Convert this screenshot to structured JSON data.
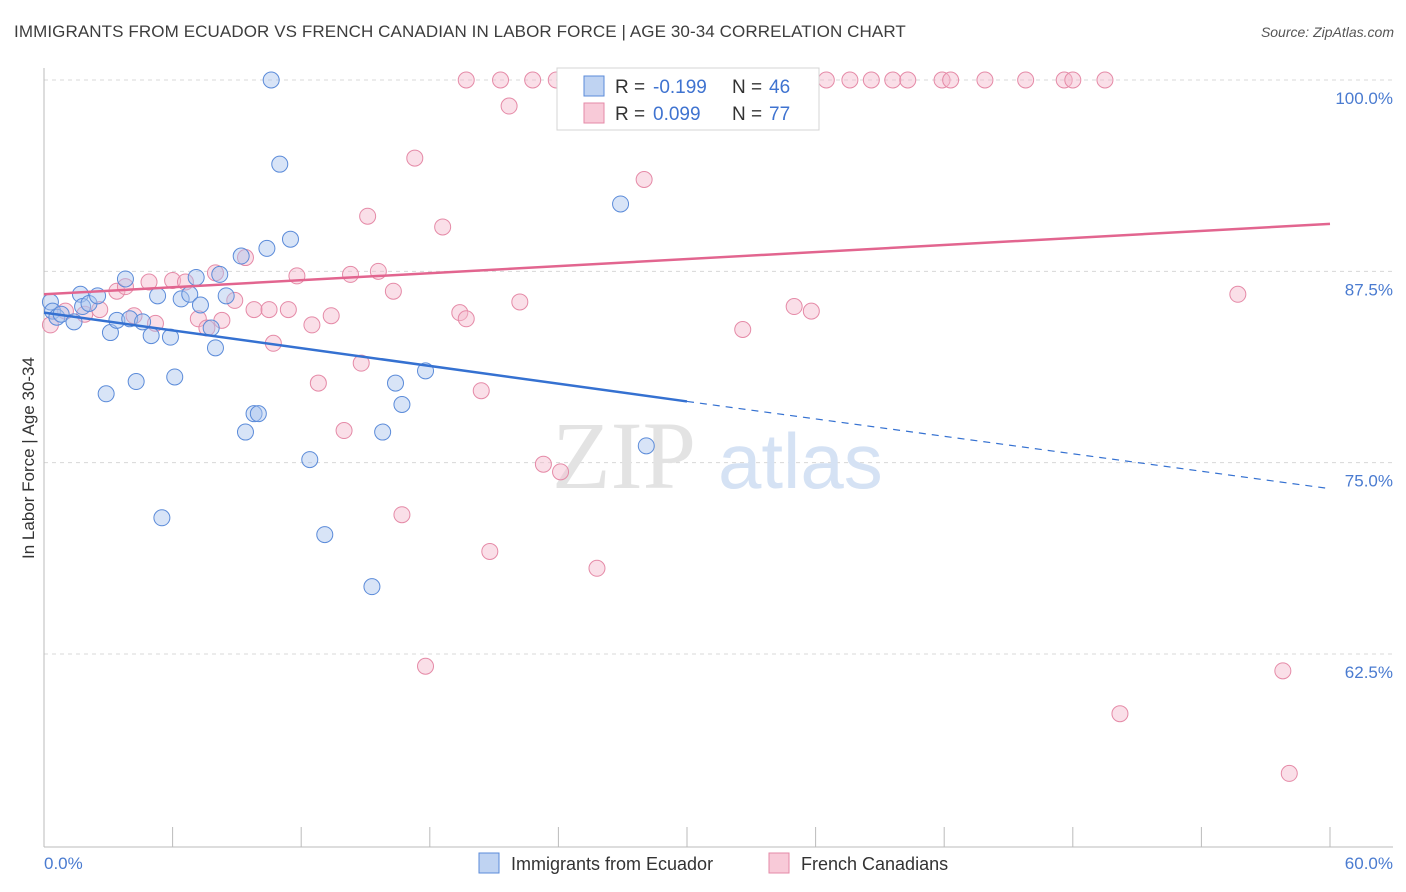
{
  "title": "IMMIGRANTS FROM ECUADOR VS FRENCH CANADIAN IN LABOR FORCE | AGE 30-34 CORRELATION CHART",
  "source": "Source: ZipAtlas.com",
  "watermark": {
    "zip": "ZIP",
    "atlas": "atlas"
  },
  "colors": {
    "blue_fill": "#a9c4ee",
    "blue_stroke": "#5b8bd9",
    "blue_line": "#3571d1",
    "pink_fill": "#f5b8cb",
    "pink_stroke": "#e58aa7",
    "pink_line": "#e2658f",
    "grid": "#d8d8d8",
    "tick_text": "#4a7bd0"
  },
  "legend": {
    "r_label": "R =",
    "n_label": "N =",
    "series": [
      {
        "r": "-0.199",
        "n": "46"
      },
      {
        "r": "0.099",
        "n": "77"
      }
    ]
  },
  "bottom_legend": [
    "Immigrants from Ecuador",
    "French Canadians"
  ],
  "chart_data": {
    "type": "scatter",
    "title": "IMMIGRANTS FROM ECUADOR VS FRENCH CANADIAN IN LABOR FORCE | AGE 30-34 CORRELATION CHART",
    "xlabel": "",
    "ylabel": "In Labor Force | Age 30-34",
    "xlim": [
      0,
      60
    ],
    "ylim": [
      50,
      101.5
    ],
    "x_tick_labels": [
      "0.0%",
      "60.0%"
    ],
    "y_tick_values": [
      62.5,
      75.0,
      87.5,
      100.0
    ],
    "y_tick_labels": [
      "62.5%",
      "75.0%",
      "87.5%",
      "100.0%"
    ],
    "grid": "horizontal dashed",
    "series": [
      {
        "name": "Immigrants from Ecuador",
        "trend": {
          "x0": 0,
          "y0": 84.8,
          "x1": 30,
          "y1": 79.0,
          "dashed_to_x": 60,
          "dashed_to_y": 73.3
        },
        "points": [
          [
            0.3,
            85.5
          ],
          [
            0.4,
            84.9
          ],
          [
            0.6,
            84.5
          ],
          [
            0.8,
            84.7
          ],
          [
            1.4,
            84.2
          ],
          [
            1.7,
            86.0
          ],
          [
            1.8,
            85.2
          ],
          [
            2.1,
            85.4
          ],
          [
            2.5,
            85.9
          ],
          [
            2.9,
            79.5
          ],
          [
            3.1,
            83.5
          ],
          [
            3.4,
            84.3
          ],
          [
            3.8,
            87.0
          ],
          [
            4.0,
            84.4
          ],
          [
            4.3,
            80.3
          ],
          [
            4.6,
            84.2
          ],
          [
            5.0,
            83.3
          ],
          [
            5.3,
            85.9
          ],
          [
            5.5,
            71.4
          ],
          [
            5.9,
            83.2
          ],
          [
            6.1,
            80.6
          ],
          [
            6.4,
            85.7
          ],
          [
            6.8,
            86.0
          ],
          [
            7.1,
            87.1
          ],
          [
            7.3,
            85.3
          ],
          [
            7.8,
            83.8
          ],
          [
            8.0,
            82.5
          ],
          [
            8.2,
            87.3
          ],
          [
            8.5,
            85.9
          ],
          [
            9.2,
            88.5
          ],
          [
            9.4,
            77.0
          ],
          [
            9.8,
            78.2
          ],
          [
            10.0,
            78.2
          ],
          [
            10.4,
            89.0
          ],
          [
            10.6,
            100.0
          ],
          [
            11.0,
            94.5
          ],
          [
            11.5,
            89.6
          ],
          [
            12.4,
            75.2
          ],
          [
            13.1,
            70.3
          ],
          [
            15.3,
            66.9
          ],
          [
            15.8,
            77.0
          ],
          [
            16.4,
            80.2
          ],
          [
            16.7,
            78.8
          ],
          [
            17.8,
            81.0
          ],
          [
            26.9,
            91.9
          ],
          [
            28.1,
            76.1
          ]
        ]
      },
      {
        "name": "French Canadians",
        "trend": {
          "x0": 0,
          "y0": 86.0,
          "x1": 60,
          "y1": 90.6
        },
        "points": [
          [
            0.3,
            84.0
          ],
          [
            1.0,
            84.9
          ],
          [
            1.9,
            84.7
          ],
          [
            2.6,
            85.0
          ],
          [
            3.4,
            86.2
          ],
          [
            3.8,
            86.5
          ],
          [
            4.2,
            84.6
          ],
          [
            4.9,
            86.8
          ],
          [
            5.2,
            84.1
          ],
          [
            6.0,
            86.9
          ],
          [
            6.6,
            86.8
          ],
          [
            7.2,
            84.4
          ],
          [
            7.6,
            83.8
          ],
          [
            8.0,
            87.4
          ],
          [
            8.3,
            84.3
          ],
          [
            8.9,
            85.6
          ],
          [
            9.4,
            88.4
          ],
          [
            9.8,
            85.0
          ],
          [
            10.5,
            85.0
          ],
          [
            10.7,
            82.8
          ],
          [
            11.4,
            85.0
          ],
          [
            11.8,
            87.2
          ],
          [
            12.5,
            84.0
          ],
          [
            12.8,
            80.2
          ],
          [
            13.4,
            84.6
          ],
          [
            14.0,
            77.1
          ],
          [
            14.3,
            87.3
          ],
          [
            14.8,
            81.5
          ],
          [
            15.1,
            91.1
          ],
          [
            15.6,
            87.5
          ],
          [
            16.3,
            86.2
          ],
          [
            16.7,
            71.6
          ],
          [
            17.3,
            94.9
          ],
          [
            17.8,
            61.7
          ],
          [
            18.6,
            90.4
          ],
          [
            19.4,
            84.8
          ],
          [
            19.7,
            84.4
          ],
          [
            19.7,
            100.0
          ],
          [
            20.4,
            79.7
          ],
          [
            20.8,
            69.2
          ],
          [
            21.3,
            100.0
          ],
          [
            21.7,
            98.3
          ],
          [
            22.2,
            85.5
          ],
          [
            22.8,
            100.0
          ],
          [
            23.3,
            74.9
          ],
          [
            23.9,
            100.0
          ],
          [
            24.1,
            74.4
          ],
          [
            25.5,
            100.0
          ],
          [
            25.8,
            68.1
          ],
          [
            26.3,
            100.0
          ],
          [
            26.9,
            100.0
          ],
          [
            27.4,
            100.0
          ],
          [
            28.0,
            93.5
          ],
          [
            28.6,
            100.0
          ],
          [
            29.3,
            100.0
          ],
          [
            30.5,
            100.0
          ],
          [
            32.6,
            83.7
          ],
          [
            33.0,
            100.0
          ],
          [
            34.9,
            100.0
          ],
          [
            35.0,
            85.2
          ],
          [
            35.8,
            84.9
          ],
          [
            36.5,
            100.0
          ],
          [
            37.6,
            100.0
          ],
          [
            38.6,
            100.0
          ],
          [
            39.6,
            100.0
          ],
          [
            40.3,
            100.0
          ],
          [
            41.9,
            100.0
          ],
          [
            42.3,
            100.0
          ],
          [
            43.9,
            100.0
          ],
          [
            45.8,
            100.0
          ],
          [
            47.6,
            100.0
          ],
          [
            48.0,
            100.0
          ],
          [
            49.5,
            100.0
          ],
          [
            50.2,
            58.6
          ],
          [
            55.7,
            86.0
          ],
          [
            57.8,
            61.4
          ],
          [
            58.1,
            54.7
          ]
        ]
      }
    ]
  }
}
